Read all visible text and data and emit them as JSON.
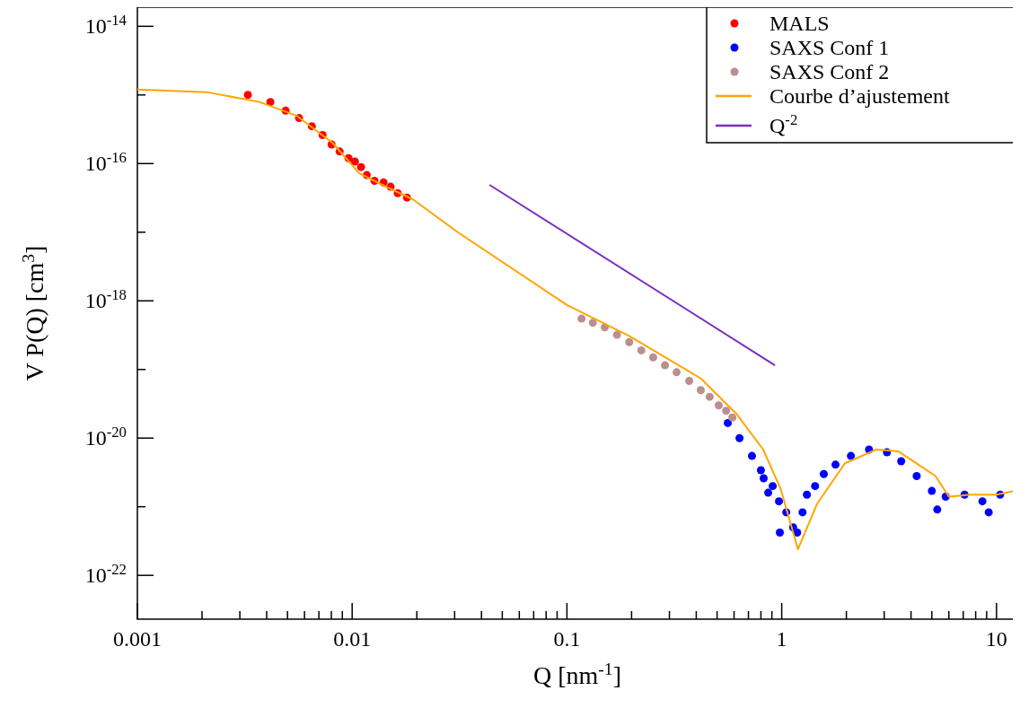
{
  "chart_data": {
    "type": "scatter",
    "xlabel": "Q [nm$^{-1}$]",
    "ylabel": "V P(Q) [cm$^{3}$]",
    "log": "xy",
    "grid": false,
    "legend": "top right",
    "marker": "circle",
    "xlim": [
      0.001,
      12.5
    ],
    "ylim": [
      2.3e-23,
      1.9e-14
    ],
    "xticks": [
      0.001,
      {
        "value": 0.002,
        "label": null
      },
      {
        "value": 0.003,
        "label": null
      },
      {
        "value": 0.004,
        "label": null
      },
      {
        "value": 0.005,
        "label": null
      },
      {
        "value": 0.006,
        "label": null
      },
      {
        "value": 0.007,
        "label": null
      },
      {
        "value": 0.008,
        "label": null
      },
      {
        "value": 0.009,
        "label": null
      },
      0.01,
      {
        "value": 0.02,
        "label": null
      },
      {
        "value": 0.03,
        "label": null
      },
      {
        "value": 0.04,
        "label": null
      },
      {
        "value": 0.05,
        "label": null
      },
      {
        "value": 0.06,
        "label": null
      },
      {
        "value": 0.07,
        "label": null
      },
      {
        "value": 0.08,
        "label": null
      },
      {
        "value": 0.09,
        "label": null
      },
      0.1,
      {
        "value": 0.2,
        "label": null
      },
      {
        "value": 0.3,
        "label": null
      },
      {
        "value": 0.4,
        "label": null
      },
      {
        "value": 0.5,
        "label": null
      },
      {
        "value": 0.6,
        "label": null
      },
      {
        "value": 0.7,
        "label": null
      },
      {
        "value": 0.8,
        "label": null
      },
      {
        "value": 0.9,
        "label": null
      },
      1,
      {
        "value": 2,
        "label": null
      },
      {
        "value": 3,
        "label": null
      },
      {
        "value": 4,
        "label": null
      },
      {
        "value": 5,
        "label": null
      },
      {
        "value": 6,
        "label": null
      },
      {
        "value": 7,
        "label": null
      },
      {
        "value": 8,
        "label": null
      },
      {
        "value": 9,
        "label": null
      },
      10
    ],
    "yticks": [
      {
        "value": 1e-14,
        "label": "10$^{-14}$"
      },
      {
        "value": 1e-15,
        "label": null
      },
      {
        "value": 1e-16,
        "label": "10$^{-16}$"
      },
      {
        "value": 1e-17,
        "label": null
      },
      {
        "value": 1e-18,
        "label": "10$^{-18}$"
      },
      {
        "value": 1e-19,
        "label": null
      },
      {
        "value": 1e-20,
        "label": "10$^{-20}$"
      },
      {
        "value": 1e-21,
        "label": null
      },
      {
        "value": 1e-22,
        "label": "10$^{-22}$"
      }
    ],
    "series": [
      {
        "name": "MALS",
        "color": "#ff0000",
        "x": [
          0.00327,
          0.00416,
          0.0049,
          0.00566,
          0.00649,
          0.00728,
          0.00802,
          0.00874,
          0.00962,
          0.0103,
          0.011,
          0.0117,
          0.0127,
          0.014,
          0.0151,
          0.0163,
          0.018
        ],
        "values": [
          1e-15,
          7.9e-16,
          5.9e-16,
          4.6e-16,
          3.5e-16,
          2.6e-16,
          1.9e-16,
          1.5e-16,
          1.2e-16,
          1.07e-16,
          8.9e-17,
          6.8e-17,
          5.6e-17,
          5.3e-17,
          4.6e-17,
          3.7e-17,
          3.2e-17
        ]
      },
      {
        "name": "SAXS Conf 1",
        "color": "#0000ff",
        "x": [
          0.561,
          0.636,
          0.727,
          0.8,
          0.824,
          0.865,
          0.908,
          0.971,
          0.98,
          1.05,
          1.13,
          1.18,
          1.25,
          1.31,
          1.43,
          1.57,
          1.78,
          2.1,
          2.55,
          3.09,
          3.6,
          4.25,
          5.0,
          5.3,
          5.8,
          7.1,
          8.6,
          9.2,
          10.4
        ],
        "values": [
          1.66e-20,
          1e-20,
          5.5e-21,
          3.4e-21,
          2.6e-21,
          1.6e-21,
          2e-21,
          1.2e-21,
          4.2e-22,
          8.3e-22,
          5e-22,
          4.2e-22,
          8.3e-22,
          1.5e-21,
          2e-21,
          3e-21,
          4.1e-21,
          5.5e-21,
          6.8e-21,
          6.2e-21,
          4.6e-21,
          2.8e-21,
          1.7e-21,
          9.1e-22,
          1.4e-21,
          1.5e-21,
          1.2e-21,
          8.3e-22,
          1.5e-21
        ]
      },
      {
        "name": "SAXS Conf 2",
        "color": "#bc8f8f",
        "x": [
          0.117,
          0.132,
          0.15,
          0.171,
          0.195,
          0.222,
          0.252,
          0.286,
          0.324,
          0.371,
          0.42,
          0.462,
          0.509,
          0.551,
          0.589
        ],
        "values": [
          5.5e-19,
          4.8e-19,
          4.1e-19,
          3.2e-19,
          2.5e-19,
          1.9e-19,
          1.5e-19,
          1.15e-19,
          9.1e-20,
          6.8e-20,
          5e-20,
          4e-20,
          3e-20,
          2.5e-20,
          2e-20
        ]
      },
      {
        "name": "Courbe d’ajustement",
        "type": "line",
        "marker": "none",
        "color": "#ffa500",
        "x": [
          0.001,
          0.0021,
          0.0037,
          0.0055,
          0.0081,
          0.0108,
          0.0144,
          0.0192,
          0.031,
          0.1,
          0.194,
          0.42,
          0.62,
          0.82,
          0.99,
          1.19,
          1.46,
          1.97,
          2.76,
          3.5,
          5.2,
          6.0,
          7.6,
          10,
          12.2
        ],
        "values": [
          1.2e-15,
          1.1e-15,
          7.9e-16,
          5e-16,
          2e-16,
          7.2e-17,
          4.6e-17,
          3e-17,
          1e-17,
          8.7e-19,
          3.1e-19,
          7.4e-20,
          2.2e-20,
          6.8e-21,
          1.8e-21,
          2.4e-22,
          1.1e-21,
          4.3e-21,
          6.8e-21,
          6.4e-21,
          2.8e-21,
          1.4e-21,
          1.5e-21,
          1.5e-21,
          1.7e-21
        ]
      },
      {
        "name": "Q$^{-2}$",
        "type": "line",
        "marker": "none",
        "color": "#7b2fbe",
        "x": [
          0.0436,
          0.93
        ],
        "values": [
          4.9e-17,
          1.15e-19
        ]
      }
    ]
  }
}
